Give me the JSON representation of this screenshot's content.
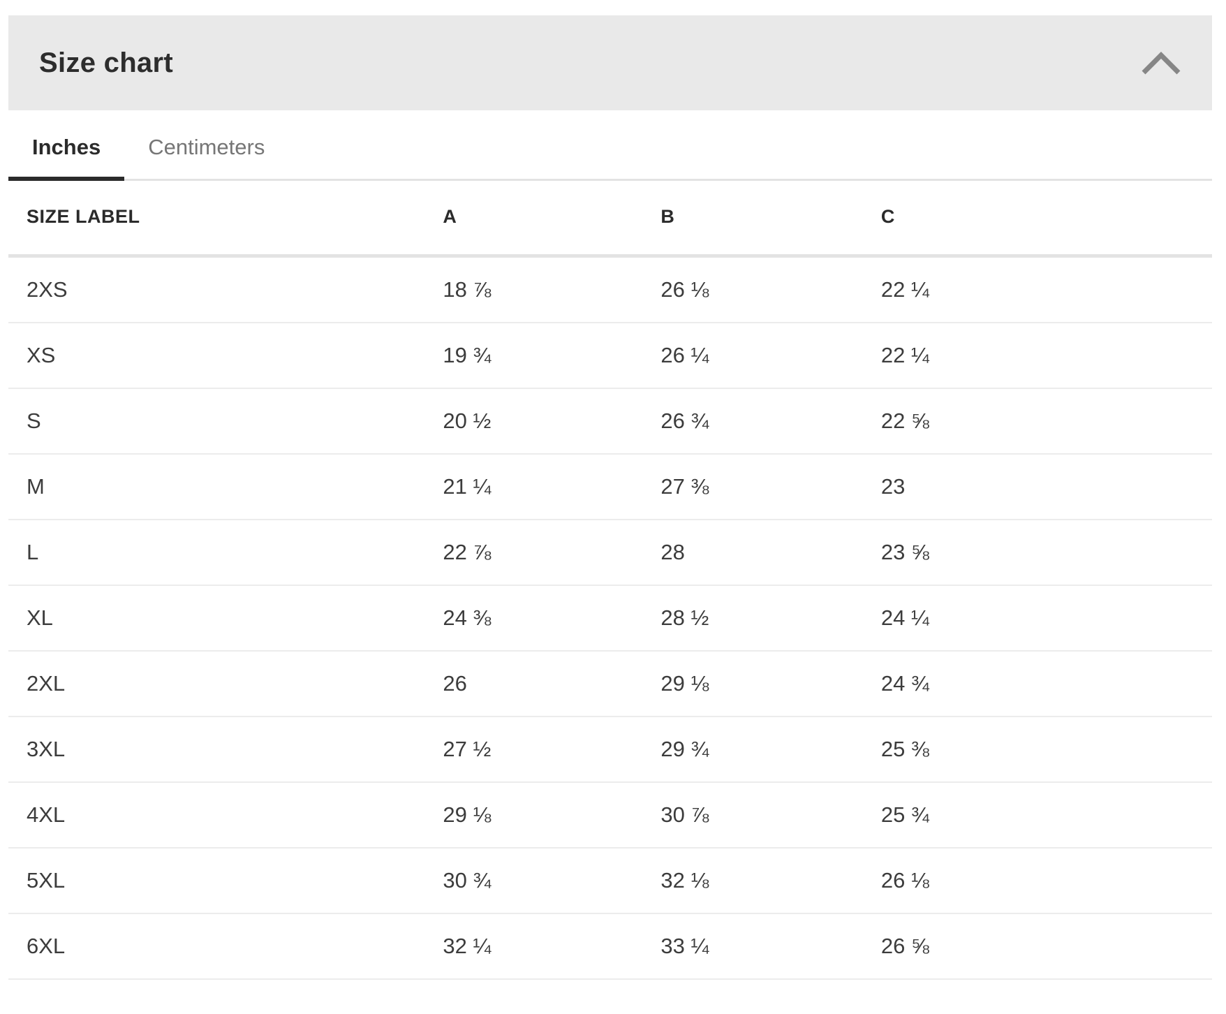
{
  "panel": {
    "title": "Size chart"
  },
  "tabs": {
    "inches": {
      "label": "Inches",
      "active": true
    },
    "centimeters": {
      "label": "Centimeters",
      "active": false
    }
  },
  "table": {
    "columns": {
      "size_label": "SIZE LABEL",
      "a": "A",
      "b": "B",
      "c": "C"
    },
    "rows": [
      {
        "label": "2XS",
        "a": "18 ⅞",
        "b": "26 ⅛",
        "c": "22 ¼"
      },
      {
        "label": "XS",
        "a": "19 ¾",
        "b": "26 ¼",
        "c": "22 ¼"
      },
      {
        "label": "S",
        "a": "20 ½",
        "b": "26 ¾",
        "c": "22 ⅝"
      },
      {
        "label": "M",
        "a": "21 ¼",
        "b": "27 ⅜",
        "c": "23"
      },
      {
        "label": "L",
        "a": "22 ⅞",
        "b": "28",
        "c": "23 ⅝"
      },
      {
        "label": "XL",
        "a": "24 ⅜",
        "b": "28 ½",
        "c": "24 ¼"
      },
      {
        "label": "2XL",
        "a": "26",
        "b": "29 ⅛",
        "c": "24 ¾"
      },
      {
        "label": "3XL",
        "a": "27 ½",
        "b": "29 ¾",
        "c": "25 ⅜"
      },
      {
        "label": "4XL",
        "a": "29 ⅛",
        "b": "30 ⅞",
        "c": "25 ¾"
      },
      {
        "label": "5XL",
        "a": "30 ¾",
        "b": "32 ⅛",
        "c": "26 ⅛"
      },
      {
        "label": "6XL",
        "a": "32 ¼",
        "b": "33 ¼",
        "c": "26 ⅝"
      }
    ]
  },
  "colors": {
    "header_bg": "#e9e9e9",
    "dark": "#2b2b2b",
    "title_color": "#2d2d2d",
    "inactive_tab": "#767676",
    "divider": "#e3e3e3",
    "row_divider": "#ececec",
    "cell_text": "#3c3c3c",
    "chevron_color": "#868686"
  }
}
